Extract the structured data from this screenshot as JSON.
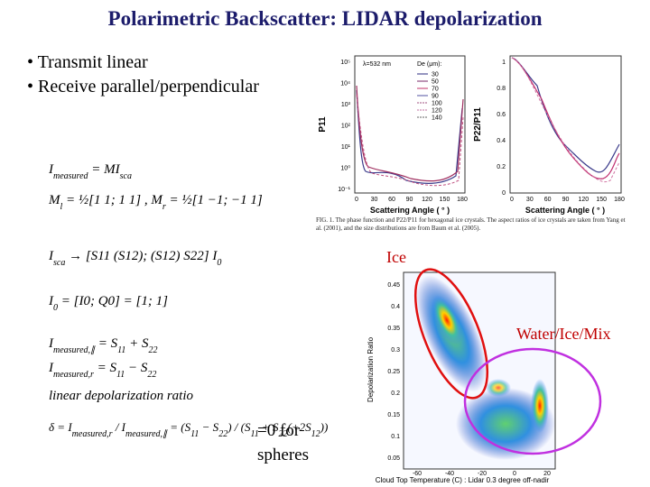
{
  "title": "Polarimetric Backscatter: LIDAR depolarization",
  "bullets": [
    "Transmit linear",
    "Receive parallel/perpendicular"
  ],
  "phase_figure": {
    "wavelength": "λ=532 nm",
    "legend_title": "De (μm):",
    "legend": [
      "30",
      "50",
      "70",
      "90",
      "100",
      "120",
      "140"
    ],
    "left_y_label": "P11",
    "right_y_label": "P22/P11",
    "x_label": "Scattering Angle ( ° )",
    "left_y_ticks": [
      "10⁻¹",
      "10⁰",
      "10¹",
      "10²",
      "10³",
      "10⁴",
      "10⁵"
    ],
    "right_y_ticks": [
      "0",
      "0.2",
      "0.4",
      "0.6",
      "0.8",
      "1"
    ],
    "x_ticks": [
      "0",
      "30",
      "60",
      "90",
      "120",
      "150",
      "180"
    ],
    "caption": "FIG. 1. The phase function and P22/P11 for hexagonal ice crystals. The aspect ratios of ice crystals are taken from Yang et al. (2001), and the size distributions are from Baum et al. (2005)."
  },
  "density_figure": {
    "y_label": "Depolarization Ratio",
    "x_label": "Cloud Top Temperature (C) : Lidar 0.3 degree off-nadir",
    "y_ticks": [
      "0.05",
      "0.1",
      "0.15",
      "0.2",
      "0.25",
      "0.3",
      "0.35",
      "0.4",
      "0.45"
    ],
    "x_ticks": [
      "-60",
      "-40",
      "-20",
      "0",
      "20"
    ]
  },
  "annotations": {
    "ice": "Ice",
    "mix": "Water/Ice/Mix",
    "spheres": [
      "=0 for",
      "spheres"
    ]
  },
  "equations": [
    [
      "I",
      {
        "sub": "measured"
      },
      " = MI",
      {
        "sub": "sca"
      }
    ],
    [
      "M",
      {
        "sub": "l"
      },
      " = ½[1 1; 1 1] , M",
      {
        "sub": "r"
      },
      " = ½[1 −1; −1 1]"
    ],
    [
      "I",
      {
        "sub": "sca"
      },
      " → [S11 (S12); (S12) S22] I",
      {
        "sub": "0"
      }
    ],
    [
      "I",
      {
        "sub": "0"
      },
      " = [I0; Q0] = [1; 1]"
    ],
    [
      "I",
      {
        "sub": "measured,∥"
      },
      " = S",
      {
        "sub": "11"
      },
      " + S",
      {
        "sub": "22"
      }
    ],
    [
      "I",
      {
        "sub": "measured,r"
      },
      " = S",
      {
        "sub": "11"
      },
      " − S",
      {
        "sub": "22"
      }
    ],
    [
      "linear  depolarization  ratio"
    ],
    [
      "δ = I",
      {
        "sub": "measured,r"
      },
      " / I",
      {
        "sub": "measured,∥"
      },
      " = (S",
      {
        "sub": "11"
      },
      " − S",
      {
        "sub": "22"
      },
      ") / (S",
      {
        "sub": "11"
      },
      " + S",
      {
        "sub": "22"
      },
      "(+2S",
      {
        "sub": "12"
      },
      "))"
    ]
  ]
}
